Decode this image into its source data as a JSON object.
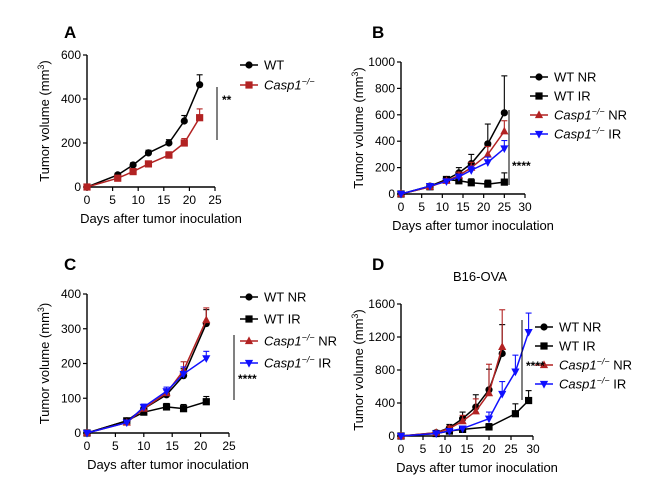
{
  "chart_data": [
    {
      "type": "line",
      "panel": "A",
      "title": "",
      "xlabel": "Days after tumor inoculation",
      "ylabel": "Tumor volume (mm3)",
      "xlim": [
        0,
        25
      ],
      "ylim": [
        0,
        600
      ],
      "xticks": [
        0,
        5,
        10,
        15,
        20,
        25
      ],
      "yticks": [
        0,
        200,
        400,
        600
      ],
      "significance": "**",
      "series": [
        {
          "name": "WT",
          "italic": false,
          "color": "#000000",
          "marker": "circle",
          "x": [
            0,
            6,
            9,
            12,
            16,
            19,
            22
          ],
          "y": [
            0,
            55,
            100,
            155,
            200,
            300,
            465
          ],
          "err": [
            0,
            8,
            10,
            12,
            15,
            25,
            45
          ]
        },
        {
          "name": "Casp1−/−",
          "italic": true,
          "color": "#b22222",
          "marker": "square",
          "x": [
            0,
            6,
            9,
            12,
            16,
            19,
            22
          ],
          "y": [
            0,
            40,
            70,
            105,
            145,
            200,
            315
          ],
          "err": [
            0,
            6,
            8,
            10,
            15,
            20,
            40
          ]
        }
      ]
    },
    {
      "type": "line",
      "panel": "B",
      "title": "",
      "xlabel": "Days after tumor inoculation",
      "ylabel": "Tumor volume (mm3)",
      "xlim": [
        0,
        30
      ],
      "ylim": [
        0,
        1000
      ],
      "xticks": [
        0,
        5,
        10,
        15,
        20,
        25,
        30
      ],
      "yticks": [
        0,
        200,
        400,
        600,
        800,
        1000
      ],
      "significance": "****",
      "series": [
        {
          "name": "WT NR",
          "italic": false,
          "color": "#000000",
          "marker": "circle",
          "x": [
            0,
            7,
            11,
            14,
            17,
            21,
            25
          ],
          "y": [
            0,
            60,
            110,
            160,
            230,
            380,
            615
          ],
          "err": [
            0,
            10,
            20,
            40,
            70,
            150,
            280
          ]
        },
        {
          "name": "WT IR",
          "italic": false,
          "color": "#000000",
          "marker": "square",
          "x": [
            0,
            7,
            11,
            14,
            17,
            21,
            25
          ],
          "y": [
            0,
            55,
            110,
            100,
            85,
            75,
            90
          ],
          "err": [
            0,
            10,
            20,
            20,
            30,
            30,
            70
          ]
        },
        {
          "name": "Casp1−/− NR",
          "italic": true,
          "color": "#b22222",
          "marker": "triangle-up",
          "x": [
            0,
            7,
            11,
            14,
            17,
            21,
            25
          ],
          "y": [
            0,
            55,
            100,
            140,
            200,
            300,
            475
          ],
          "err": [
            0,
            10,
            15,
            25,
            40,
            60,
            80
          ]
        },
        {
          "name": "Casp1−/− IR",
          "italic": true,
          "color": "#1010ff",
          "marker": "triangle-down",
          "x": [
            0,
            7,
            11,
            14,
            17,
            21,
            25
          ],
          "y": [
            0,
            60,
            95,
            130,
            180,
            240,
            345
          ],
          "err": [
            0,
            10,
            15,
            20,
            30,
            40,
            60
          ]
        }
      ]
    },
    {
      "type": "line",
      "panel": "C",
      "title": "",
      "xlabel": "Days after tumor inoculation",
      "ylabel": "Tumor volume (mm3)",
      "xlim": [
        0,
        25
      ],
      "ylim": [
        0,
        400
      ],
      "xticks": [
        0,
        5,
        10,
        15,
        20,
        25
      ],
      "yticks": [
        0,
        100,
        200,
        300,
        400
      ],
      "significance": "****",
      "series": [
        {
          "name": "WT NR",
          "italic": false,
          "color": "#000000",
          "marker": "circle",
          "x": [
            0,
            7,
            10,
            14,
            17,
            21
          ],
          "y": [
            0,
            35,
            70,
            110,
            165,
            315
          ],
          "err": [
            0,
            5,
            8,
            12,
            20,
            40
          ]
        },
        {
          "name": "WT IR",
          "italic": false,
          "color": "#000000",
          "marker": "square",
          "x": [
            0,
            7,
            10,
            14,
            17,
            21
          ],
          "y": [
            0,
            35,
            60,
            75,
            70,
            90
          ],
          "err": [
            0,
            5,
            8,
            10,
            12,
            15
          ]
        },
        {
          "name": "Casp1−/− NR",
          "italic": true,
          "color": "#b22222",
          "marker": "triangle-up",
          "x": [
            0,
            7,
            10,
            14,
            17,
            21
          ],
          "y": [
            0,
            30,
            70,
            115,
            180,
            325
          ],
          "err": [
            0,
            5,
            8,
            12,
            25,
            35
          ]
        },
        {
          "name": "Casp1−/− IR",
          "italic": true,
          "color": "#1010ff",
          "marker": "triangle-down",
          "x": [
            0,
            7,
            10,
            14,
            17,
            21
          ],
          "y": [
            0,
            30,
            75,
            120,
            170,
            215
          ],
          "err": [
            0,
            5,
            8,
            12,
            20,
            20
          ]
        }
      ]
    },
    {
      "type": "line",
      "panel": "D",
      "title": "B16-OVA",
      "xlabel": "Days after tumor inoculation",
      "ylabel": "Tumor volume (mm3)",
      "xlim": [
        0,
        30
      ],
      "ylim": [
        0,
        1600
      ],
      "xticks": [
        0,
        5,
        10,
        15,
        20,
        25,
        30
      ],
      "yticks": [
        0,
        400,
        800,
        1200,
        1600
      ],
      "significance": "****",
      "series": [
        {
          "name": "WT NR",
          "italic": false,
          "color": "#000000",
          "marker": "circle",
          "x": [
            0,
            8,
            11,
            14,
            17,
            20,
            23
          ],
          "y": [
            0,
            40,
            100,
            210,
            350,
            560,
            1000
          ],
          "err": [
            0,
            15,
            40,
            80,
            150,
            250,
            350
          ]
        },
        {
          "name": "WT IR",
          "italic": false,
          "color": "#000000",
          "marker": "square",
          "x": [
            0,
            8,
            11,
            14,
            20,
            26,
            29
          ],
          "y": [
            0,
            30,
            60,
            80,
            110,
            270,
            430
          ],
          "err": [
            0,
            10,
            20,
            30,
            40,
            120,
            120
          ]
        },
        {
          "name": "Casp1−/− NR",
          "italic": true,
          "color": "#b22222",
          "marker": "triangle-up",
          "x": [
            0,
            8,
            11,
            14,
            17,
            20,
            23
          ],
          "y": [
            0,
            40,
            90,
            180,
            300,
            520,
            1080
          ],
          "err": [
            0,
            15,
            30,
            70,
            150,
            350,
            450
          ]
        },
        {
          "name": "Casp1−/− IR",
          "italic": true,
          "color": "#1010ff",
          "marker": "triangle-down",
          "x": [
            0,
            8,
            11,
            14,
            20,
            23,
            26,
            29
          ],
          "y": [
            0,
            30,
            60,
            90,
            210,
            510,
            780,
            1260
          ],
          "err": [
            0,
            10,
            20,
            30,
            80,
            150,
            200,
            230
          ]
        }
      ]
    }
  ]
}
